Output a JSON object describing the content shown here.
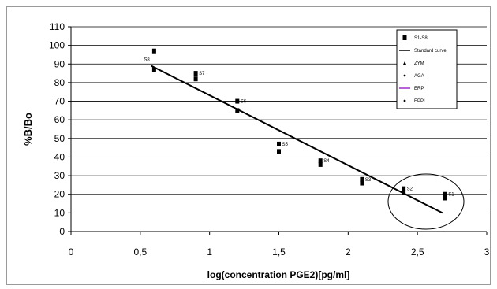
{
  "chart_data": {
    "type": "scatter",
    "title": "",
    "xlabel": "log(concentration PGE2)[pg/ml]",
    "ylabel": "%B/Bo",
    "xlim": [
      0,
      3
    ],
    "ylim": [
      0,
      110
    ],
    "x_ticks": [
      "0",
      "0,5",
      "1",
      "1,5",
      "2",
      "2,5",
      "3"
    ],
    "y_ticks": [
      "0",
      "10",
      "20",
      "30",
      "40",
      "50",
      "60",
      "70",
      "80",
      "90",
      "100",
      "110"
    ],
    "grid": "horizontal",
    "legend_position": "top-right",
    "series": [
      {
        "name": "S1-S8",
        "marker": "square",
        "color": "#000000",
        "points": [
          {
            "x": 0.6,
            "y": 97,
            "label": ""
          },
          {
            "x": 0.6,
            "y": 87,
            "label": "S8"
          },
          {
            "x": 0.9,
            "y": 85,
            "label": "S7"
          },
          {
            "x": 0.9,
            "y": 82,
            "label": ""
          },
          {
            "x": 1.2,
            "y": 70,
            "label": "S6"
          },
          {
            "x": 1.2,
            "y": 65,
            "label": ""
          },
          {
            "x": 1.5,
            "y": 47,
            "label": "S5"
          },
          {
            "x": 1.5,
            "y": 43,
            "label": ""
          },
          {
            "x": 1.8,
            "y": 38,
            "label": "S4"
          },
          {
            "x": 1.8,
            "y": 36,
            "label": ""
          },
          {
            "x": 2.1,
            "y": 28,
            "label": "S3"
          },
          {
            "x": 2.1,
            "y": 26,
            "label": ""
          },
          {
            "x": 2.4,
            "y": 23,
            "label": "S2"
          },
          {
            "x": 2.4,
            "y": 21,
            "label": ""
          },
          {
            "x": 2.7,
            "y": 20,
            "label": "S1"
          },
          {
            "x": 2.7,
            "y": 18,
            "label": ""
          }
        ]
      },
      {
        "name": "Standard curve",
        "type": "line",
        "color": "#000000",
        "points": [
          {
            "x": 0.58,
            "y": 89
          },
          {
            "x": 2.68,
            "y": 10
          }
        ]
      }
    ],
    "legend": [
      {
        "label": "S1-S8",
        "symbol": "square",
        "color": "#000000"
      },
      {
        "label": "Standard curve",
        "symbol": "line",
        "color": "#000000"
      },
      {
        "label": "ZYM",
        "symbol": "triangle",
        "color": "#000000"
      },
      {
        "label": "AGA",
        "symbol": "dot",
        "color": "#000000"
      },
      {
        "label": "ERP",
        "symbol": "line",
        "color": "#9b30c8"
      },
      {
        "label": "EPPI",
        "symbol": "dot",
        "color": "#000000"
      }
    ],
    "annotation": "ellipse around S1-S2 region"
  }
}
